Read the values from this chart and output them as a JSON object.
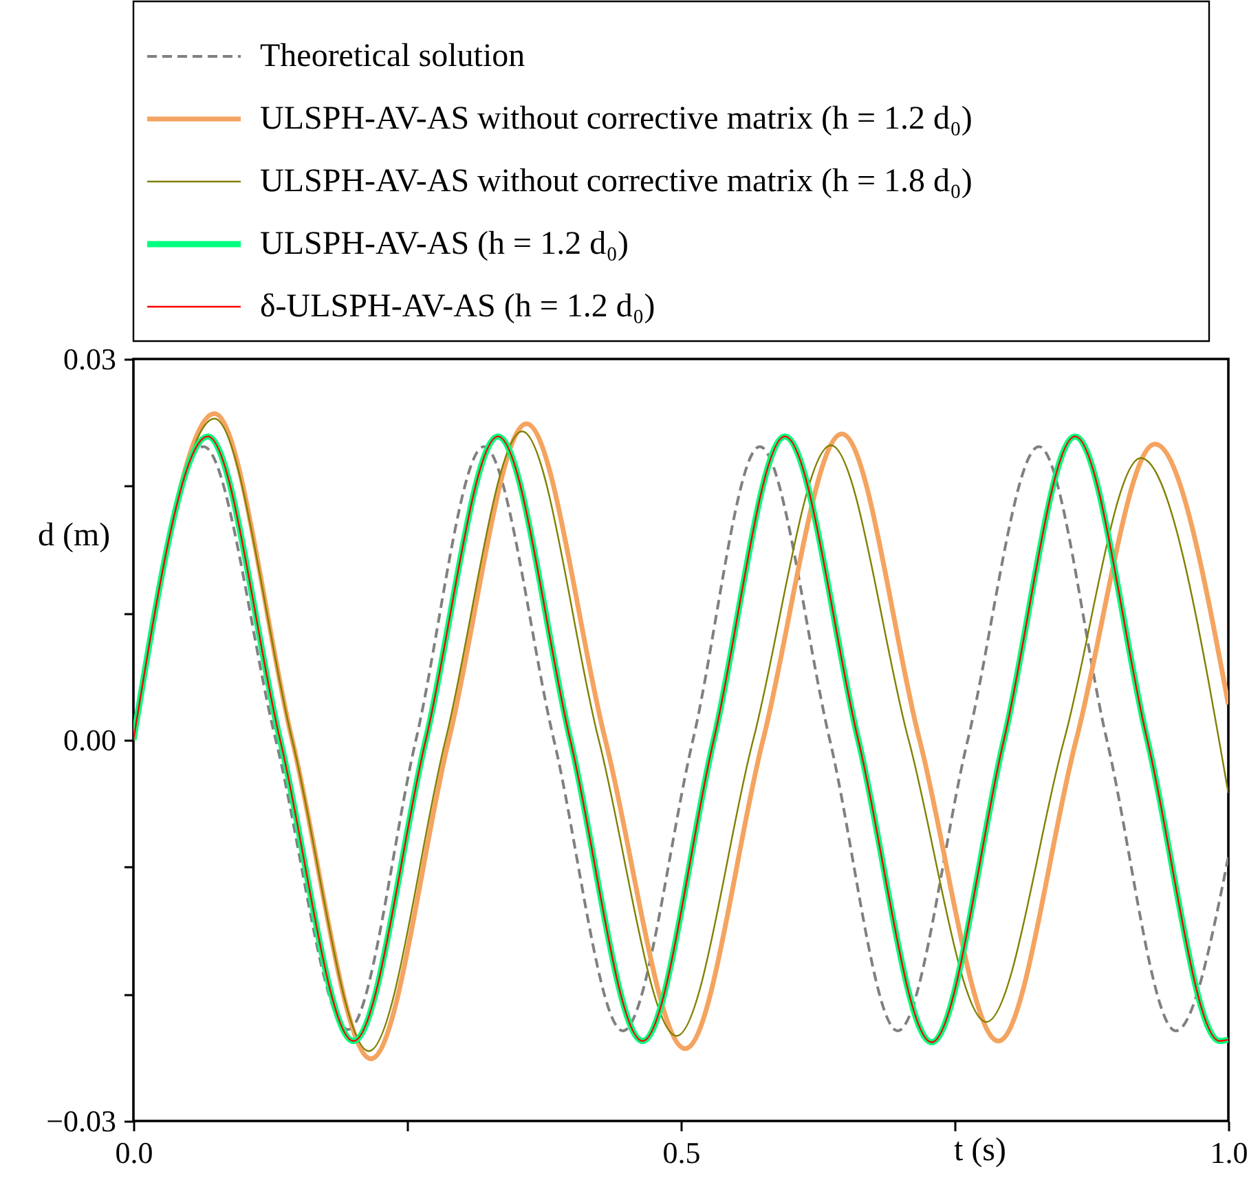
{
  "chart_data": {
    "type": "line",
    "xlabel": "t (s)",
    "ylabel": "d (m)",
    "xlim": [
      0,
      1
    ],
    "ylim": [
      -0.03,
      0.03
    ],
    "xticks": [
      {
        "value": 0,
        "label": "0.0"
      },
      {
        "value": 0.25,
        "label": null
      },
      {
        "value": 0.5,
        "label": "0.5"
      },
      {
        "value": 0.75,
        "label": null
      },
      {
        "value": 1,
        "label": "1.0"
      }
    ],
    "yticks": [
      {
        "value": -0.03,
        "label": "−0.03"
      },
      {
        "value": -0.02,
        "label": null
      },
      {
        "value": -0.01,
        "label": null
      },
      {
        "value": 0,
        "label": "0.00"
      },
      {
        "value": 0.01,
        "label": null
      },
      {
        "value": 0.02,
        "label": null
      },
      0.03
    ],
    "grid": false,
    "legend": "top",
    "marker": "none",
    "series": [
      {
        "name": "Theoretical solution",
        "color": "#808080",
        "line_style": "dashed",
        "x": [
          0,
          0.064,
          0.13,
          0.196,
          0.258,
          0.32,
          0.384,
          0.447,
          0.511,
          0.572,
          0.636,
          0.698,
          0.762,
          0.827,
          0.889,
          0.952,
          1.0
        ],
        "values": [
          0,
          0.0231,
          0,
          -0.0228,
          0,
          0.0231,
          0,
          -0.0229,
          0,
          0.0231,
          0,
          -0.0229,
          0,
          0.0231,
          0,
          -0.0229,
          -0.0092
        ]
      },
      {
        "name": "ULSPH-AV-AS without corrective matrix (h = 1.2 d₀)",
        "color": "#f4a460",
        "x": [
          0,
          0.074,
          0.145,
          0.217,
          0.288,
          0.359,
          0.431,
          0.504,
          0.575,
          0.647,
          0.718,
          0.79,
          0.861,
          0.933,
          1.0
        ],
        "values": [
          0,
          0.0257,
          0,
          -0.0251,
          0,
          0.0249,
          0,
          -0.0243,
          0,
          0.0241,
          0,
          -0.0237,
          0,
          0.0233,
          0.0028
        ]
      },
      {
        "name": "ULSPH-AV-AS without corrective matrix (h = 1.8 d₀)",
        "color": "#808000",
        "x": [
          0,
          0.074,
          0.145,
          0.215,
          0.285,
          0.355,
          0.425,
          0.496,
          0.566,
          0.637,
          0.708,
          0.779,
          0.85,
          0.92,
          1.0
        ],
        "values": [
          0,
          0.0253,
          0,
          -0.0245,
          0,
          0.0243,
          0,
          -0.0233,
          0,
          0.0232,
          0,
          -0.0222,
          0,
          0.0222,
          -0.0042
        ]
      },
      {
        "name": "ULSPH-AV-AS (h = 1.2 d₀)",
        "color": "#00ff7f",
        "x": [
          0,
          0.068,
          0.134,
          0.201,
          0.267,
          0.333,
          0.399,
          0.465,
          0.53,
          0.595,
          0.662,
          0.729,
          0.795,
          0.86,
          0.926,
          0.992,
          1.0
        ],
        "values": [
          0,
          0.0239,
          0,
          -0.0237,
          0,
          0.0239,
          0,
          -0.0237,
          0,
          0.0239,
          0,
          -0.0238,
          0,
          0.0239,
          0,
          -0.0237,
          -0.0236
        ]
      },
      {
        "name": "δ-ULSPH-AV-AS (h = 1.2 d₀)",
        "color": "#ff0000",
        "x": [
          0,
          0.068,
          0.134,
          0.201,
          0.267,
          0.333,
          0.399,
          0.465,
          0.53,
          0.595,
          0.662,
          0.729,
          0.795,
          0.86,
          0.926,
          0.992,
          1.0
        ],
        "values": [
          0,
          0.0239,
          0,
          -0.0237,
          0,
          0.0239,
          0,
          -0.0237,
          0,
          0.0239,
          0,
          -0.0238,
          0,
          0.0239,
          0,
          -0.0237,
          -0.0236
        ]
      }
    ]
  }
}
